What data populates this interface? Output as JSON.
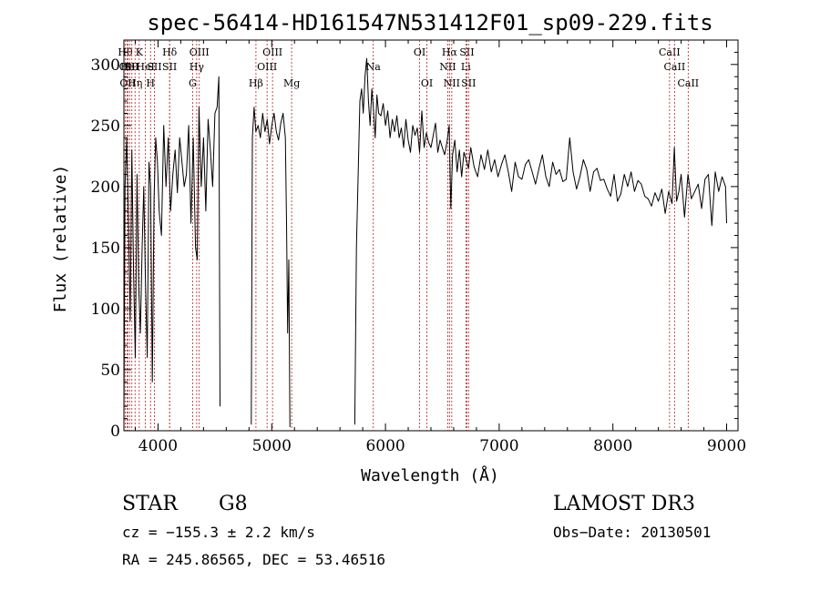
{
  "chart_data": {
    "type": "line",
    "title": "spec-56414-HD161547N531412F01_sp09-229.fits",
    "xlabel": "Wavelength (Å)",
    "ylabel": "Flux (relative)",
    "xlim": [
      3700,
      9100
    ],
    "ylim": [
      0,
      320
    ],
    "xticks": [
      4000,
      5000,
      6000,
      7000,
      8000,
      9000
    ],
    "yticks": [
      0,
      50,
      100,
      150,
      200,
      250,
      300
    ],
    "grid": false,
    "line_color": "#000000",
    "marker_color": "#b22222",
    "series": [
      {
        "name": "",
        "segments": [
          {
            "x": [
              3700,
              3710,
              3725,
              3740,
              3755,
              3770,
              3785,
              3800,
              3815,
              3830,
              3845,
              3860,
              3875,
              3890,
              3905,
              3920,
              3935,
              3950,
              3965,
              3980,
              3995,
              4010,
              4030,
              4050,
              4070,
              4090,
              4110,
              4130,
              4150,
              4170,
              4190,
              4210,
              4230,
              4250,
              4270,
              4290,
              4310,
              4330,
              4345,
              4360,
              4380,
              4400,
              4420,
              4440,
              4460,
              4480,
              4500,
              4520,
              4535,
              4545
            ],
            "y": [
              10,
              200,
              240,
              170,
              90,
              230,
              130,
              60,
              210,
              120,
              80,
              150,
              200,
              120,
              60,
              220,
              200,
              40,
              190,
              240,
              220,
              180,
              160,
              250,
              200,
              240,
              180,
              210,
              230,
              195,
              240,
              220,
              200,
              210,
              250,
              170,
              240,
              150,
              140,
              265,
              200,
              240,
              180,
              255,
              230,
              200,
              260,
              265,
              290,
              20
            ]
          },
          {
            "x": [
              4820,
              4830,
              4845,
              4860,
              4880,
              4900,
              4920,
              4940,
              4960,
              4980,
              5000,
              5020,
              5040,
              5060,
              5080,
              5100,
              5120,
              5130,
              5140,
              5150,
              5160
            ],
            "y": [
              5,
              240,
              265,
              245,
              250,
              240,
              260,
              245,
              255,
              235,
              250,
              260,
              245,
              238,
              252,
              260,
              240,
              170,
              80,
              140,
              3
            ]
          },
          {
            "x": [
              5730,
              5745,
              5760,
              5775,
              5790,
              5805,
              5820,
              5835,
              5850,
              5865,
              5880,
              5895,
              5910,
              5925,
              5940,
              5960,
              5980,
              6000,
              6020,
              6040,
              6060,
              6080,
              6100,
              6120,
              6140,
              6160,
              6180,
              6200,
              6220,
              6240,
              6260,
              6280,
              6300,
              6320,
              6340,
              6360,
              6380,
              6400,
              6420,
              6440,
              6460,
              6480,
              6500,
              6520,
              6540,
              6560,
              6575,
              6590,
              6610,
              6630,
              6650,
              6670,
              6690,
              6710,
              6730,
              6750,
              6780,
              6810,
              6840,
              6870,
              6900,
              6930,
              6960,
              6990,
              7020,
              7050,
              7080,
              7110,
              7140,
              7170,
              7200,
              7230,
              7260,
              7290,
              7320,
              7350,
              7380,
              7410,
              7440,
              7470,
              7500,
              7530,
              7560,
              7590,
              7620,
              7650,
              7680,
              7710,
              7740,
              7770,
              7800,
              7830,
              7860,
              7890,
              7920,
              7950,
              7980,
              8010,
              8040,
              8070,
              8100,
              8130,
              8160,
              8190,
              8220,
              8250,
              8280,
              8310,
              8340,
              8370,
              8400,
              8430,
              8460,
              8490,
              8520,
              8540,
              8560,
              8580,
              8600,
              8630,
              8660,
              8690,
              8720,
              8750,
              8780,
              8810,
              8840,
              8870,
              8900,
              8930,
              8960,
              8990,
              9000
            ],
            "y": [
              5,
              150,
              210,
              270,
              280,
              260,
              290,
              305,
              270,
              250,
              280,
              262,
              240,
              275,
              260,
              258,
              268,
              250,
              262,
              240,
              255,
              245,
              258,
              240,
              248,
              232,
              255,
              238,
              228,
              250,
              242,
              248,
              228,
              262,
              232,
              244,
              236,
              232,
              242,
              252,
              228,
              238,
              232,
              226,
              236,
              250,
              182,
              226,
              238,
              212,
              230,
              208,
              228,
              222,
              215,
              232,
              216,
              208,
              226,
              214,
              230,
              212,
              222,
              208,
              218,
              226,
              212,
              196,
              220,
              208,
              206,
              218,
              222,
              212,
              202,
              215,
              226,
              208,
              200,
              220,
              210,
              214,
              204,
              206,
              240,
              212,
              198,
              208,
              222,
              214,
              196,
              212,
              215,
              205,
              206,
              198,
              192,
              210,
              188,
              194,
              210,
              200,
              212,
              196,
              205,
              202,
              192,
              190,
              184,
              195,
              188,
              198,
              178,
              196,
              186,
              232,
              188,
              196,
              210,
              175,
              210,
              190,
              196,
              202,
              182,
              206,
              210,
              168,
              212,
              196,
              208,
              200,
              170
            ]
          }
        ]
      }
    ],
    "line_markers": [
      {
        "x": 3712,
        "label": "Hθ",
        "row": 0
      },
      {
        "x": 3728,
        "label": "OII",
        "row": 1
      },
      {
        "x": 3734,
        "label": "OII",
        "row": 2
      },
      {
        "x": 3750,
        "label": "HeI",
        "row": 1
      },
      {
        "x": 3770,
        "label": "SII",
        "row": 1
      },
      {
        "x": 3798,
        "label": "Hη",
        "row": 2
      },
      {
        "x": 3835,
        "label": "K",
        "row": 0
      },
      {
        "x": 3889,
        "label": "HeI",
        "row": 1
      },
      {
        "x": 3934,
        "label": "H",
        "row": 2
      },
      {
        "x": 3968,
        "label": "SII",
        "row": 1
      },
      {
        "x": 4102,
        "label": "Hδ",
        "row": 0
      },
      {
        "x": 4102,
        "label": "SII",
        "row": 1
      },
      {
        "x": 4304,
        "label": "G",
        "row": 2
      },
      {
        "x": 4340,
        "label": "Hγ",
        "row": 1
      },
      {
        "x": 4363,
        "label": "OIII",
        "row": 0
      },
      {
        "x": 4861,
        "label": "Hβ",
        "row": 2
      },
      {
        "x": 4959,
        "label": "OIII",
        "row": 1
      },
      {
        "x": 5007,
        "label": "OIII",
        "row": 0
      },
      {
        "x": 5175,
        "label": "Mg",
        "row": 2
      },
      {
        "x": 5893,
        "label": "Na",
        "row": 1
      },
      {
        "x": 6300,
        "label": "OI",
        "row": 0
      },
      {
        "x": 6364,
        "label": "OI",
        "row": 2
      },
      {
        "x": 6548,
        "label": "NII",
        "row": 1
      },
      {
        "x": 6563,
        "label": "Hα",
        "row": 0
      },
      {
        "x": 6583,
        "label": "NII",
        "row": 2
      },
      {
        "x": 6707,
        "label": "Li",
        "row": 1
      },
      {
        "x": 6716,
        "label": "SII",
        "row": 0
      },
      {
        "x": 6731,
        "label": "SII",
        "row": 2
      },
      {
        "x": 8498,
        "label": "CaII",
        "row": 0
      },
      {
        "x": 8542,
        "label": "CaII",
        "row": 1
      },
      {
        "x": 8662,
        "label": "CaII",
        "row": 2
      }
    ]
  },
  "info": {
    "class": "STAR",
    "subclass": "G8",
    "survey": "LAMOST DR3",
    "cz": "cz = −155.3 ± 2.2 km/s",
    "obs_date": "Obs−Date: 20130501",
    "coords": "RA = 245.86565, DEC =  53.46516"
  }
}
